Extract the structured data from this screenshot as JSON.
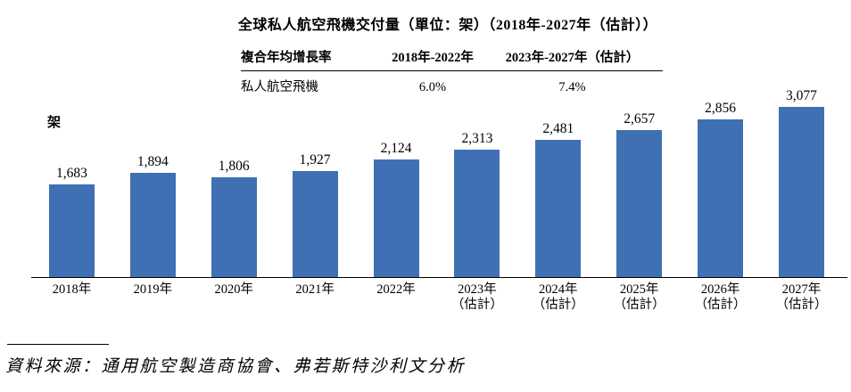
{
  "title": "全球私人航空飛機交付量（單位：架）（2018年-2027年（估計））",
  "cagr_table": {
    "header": {
      "metric": "複合年均增長率",
      "period1": "2018年-2022年",
      "period2": "2023年-2027年（估計）"
    },
    "row": {
      "metric": "私人航空飛機",
      "period1": "6.0%",
      "period2": "7.4%"
    }
  },
  "unit_label": "架",
  "chart_data": {
    "type": "bar",
    "title": "全球私人航空飛機交付量（單位：架）（2018年-2027年（估計））",
    "xlabel": "",
    "ylabel": "架",
    "categories": [
      "2018年",
      "2019年",
      "2020年",
      "2021年",
      "2022年",
      "2023年",
      "2024年",
      "2025年",
      "2026年",
      "2027年"
    ],
    "category_notes": [
      "",
      "",
      "",
      "",
      "",
      "（估計）",
      "（估計）",
      "（估計）",
      "（估計）",
      "（估計）"
    ],
    "values": [
      1683,
      1894,
      1806,
      1927,
      2124,
      2313,
      2481,
      2657,
      2856,
      3077
    ],
    "value_labels": [
      "1,683",
      "1,894",
      "1,806",
      "1,927",
      "2,124",
      "2,313",
      "2,481",
      "2,657",
      "2,856",
      "3,077"
    ],
    "bar_color": "#4070b4",
    "ylim": [
      0,
      3200
    ],
    "grid": false,
    "legend_position": "none",
    "data_labels_position": "above"
  },
  "source_note": "資料來源：通用航空製造商協會、弗若斯特沙利文分析"
}
